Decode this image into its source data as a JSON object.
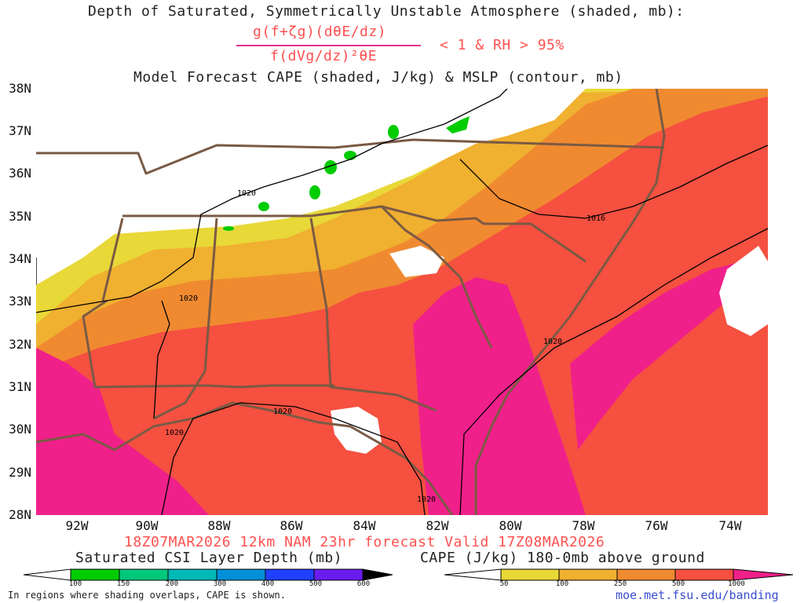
{
  "header": {
    "line1": "Depth of Saturated, Symmetrically Unstable Atmosphere (shaded, mb):",
    "numerator": "g(f+ζg)(dθE/dz)",
    "denominator": "f(dVg/dz)²θE",
    "condition": "< 1 & RH > 95%",
    "line3": "Model Forecast CAPE (shaded, J/kg) & MSLP (contour, mb)"
  },
  "axes": {
    "lat_labels": [
      "38N",
      "37N",
      "36N",
      "35N",
      "34N",
      "33N",
      "32N",
      "31N",
      "30N",
      "29N",
      "28N"
    ],
    "lon_labels": [
      "92W",
      "90W",
      "88W",
      "86W",
      "84W",
      "82W",
      "80W",
      "78W",
      "76W",
      "74W"
    ]
  },
  "isobars": [
    {
      "label": "1020"
    },
    {
      "label": "1016"
    },
    {
      "label": "1020"
    },
    {
      "label": "1020"
    },
    {
      "label": "1020"
    },
    {
      "label": "1020"
    },
    {
      "label": "1020"
    }
  ],
  "footer": {
    "valid": "18Z07MAR2026 12km NAM 23hr forecast Valid 17Z08MAR2026",
    "left_title": "Saturated CSI Layer Depth (mb)",
    "right_title": "CAPE (J/kg) 180-0mb above ground",
    "note": "In regions where shading overlaps, CAPE is shown.",
    "link": "moe.met.fsu.edu/banding"
  },
  "colorbars": {
    "csi": {
      "labels": [
        "100",
        "150",
        "200",
        "300",
        "400",
        "500",
        "600"
      ],
      "colors": [
        "#00cc00",
        "#00c87a",
        "#00b8b8",
        "#0090d8",
        "#2040ff",
        "#6a1cf0",
        "#000000"
      ]
    },
    "cape": {
      "labels": [
        "50",
        "100",
        "250",
        "500",
        "1000"
      ],
      "colors": [
        "#e8d838",
        "#f0b030",
        "#f08a30",
        "#f55040",
        "#f0208a"
      ]
    }
  },
  "colors": {
    "state_lines": "#7a5a44",
    "cape_yellow": "#e8d838",
    "cape_gold": "#f0b030",
    "cape_orange": "#f08a30",
    "cape_red": "#f55040",
    "cape_magenta": "#f0208a",
    "csi_green": "#00cc00"
  }
}
